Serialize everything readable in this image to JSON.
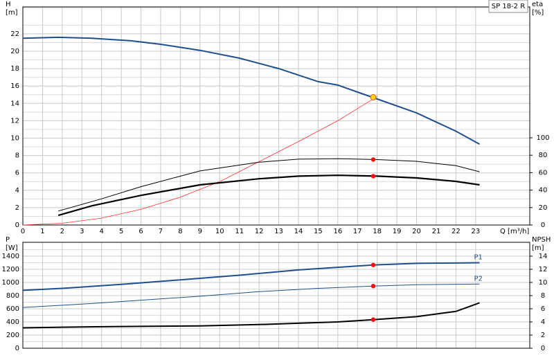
{
  "chart_data": [
    {
      "type": "line",
      "label_box": "SP 18-2 R",
      "ylabel": "H",
      "yunit": "[m]",
      "y2label": "eta",
      "y2unit": "[%]",
      "xlabel": "Q [m³/h]",
      "xlim": [
        0,
        25.75
      ],
      "xticks": [
        0,
        1,
        2,
        3,
        4,
        5,
        6,
        7,
        8,
        9,
        10,
        11,
        12,
        13,
        14,
        15,
        16,
        17,
        18,
        19,
        20,
        21,
        22,
        23
      ],
      "ylim": [
        0,
        25.1
      ],
      "yticks": [
        0,
        2,
        4,
        6,
        8,
        10,
        12,
        14,
        16,
        18,
        20,
        22
      ],
      "yminor": [
        1,
        3,
        5,
        7,
        9,
        11,
        13,
        15,
        17,
        19,
        21,
        23,
        25
      ],
      "y2lim": [
        0,
        250
      ],
      "y2ticks": [
        0,
        20,
        40,
        60,
        80,
        100
      ],
      "grid": true,
      "series": [
        {
          "color": "#1f4e8c",
          "width": 2,
          "style": "line",
          "x": [
            0,
            1.8,
            3.5,
            5.5,
            7,
            9,
            11,
            13,
            15,
            16,
            17,
            18,
            20,
            22,
            23.2
          ],
          "values": [
            21.5,
            21.6,
            21.5,
            21.2,
            20.8,
            20.1,
            19.2,
            18,
            16.5,
            16.1,
            15.3,
            14.5,
            12.9,
            10.8,
            9.3
          ]
        },
        {
          "color": "#ff3030",
          "width": 0.8,
          "style": "line",
          "x": [
            0,
            2,
            4,
            6,
            8,
            10,
            12,
            14,
            16,
            18
          ],
          "values": [
            0,
            0.2,
            0.8,
            1.8,
            3.2,
            5,
            7.3,
            9.6,
            12,
            14.8
          ]
        },
        {
          "color": "#000000",
          "width": 1,
          "style": "line",
          "axis": "y2",
          "x": [
            1.8,
            4,
            6,
            9,
            12,
            14,
            16,
            18,
            20,
            22,
            23.2
          ],
          "values": [
            16,
            30,
            44,
            62,
            72,
            75.5,
            76,
            75,
            73,
            68,
            61
          ]
        },
        {
          "color": "#000000",
          "width": 2.2,
          "style": "line",
          "axis": "y2",
          "x": [
            1.8,
            3.5,
            6,
            9,
            12,
            14,
            16,
            18,
            20,
            22,
            23.2
          ],
          "values": [
            11,
            22,
            34,
            46,
            53,
            56,
            57,
            56,
            54,
            50,
            46
          ]
        },
        {
          "color": "#ee1111",
          "style": "dot",
          "axis": "y2",
          "x": [
            17.8,
            17.8
          ],
          "values": [
            75,
            56
          ]
        },
        {
          "color": "#ffd21f",
          "style": "point",
          "x": [
            17.8
          ],
          "values": [
            14.7
          ]
        }
      ]
    },
    {
      "type": "line",
      "ylabel": "P",
      "yunit": "[W]",
      "y2label": "NPSH",
      "y2unit": "[m]",
      "xlim": [
        0,
        25.75
      ],
      "xticks": [
        0,
        1,
        2,
        3,
        4,
        5,
        6,
        7,
        8,
        9,
        10,
        11,
        12,
        13,
        14,
        15,
        16,
        17,
        18,
        19,
        20,
        21,
        22,
        23
      ],
      "ylim": [
        0,
        1610
      ],
      "yticks": [
        0,
        200,
        400,
        600,
        800,
        1000,
        1200,
        1400
      ],
      "yminor": [
        100,
        300,
        500,
        700,
        900,
        1100,
        1300,
        1500
      ],
      "y2lim": [
        0,
        16.1
      ],
      "y2ticks": [
        0,
        2,
        4,
        6,
        8,
        10,
        12,
        14
      ],
      "grid": true,
      "series": [
        {
          "name": "P1",
          "color": "#1f4e8c",
          "width": 2,
          "style": "line",
          "x": [
            0,
            2,
            5,
            8,
            11,
            14,
            16,
            17.8,
            20,
            23.2
          ],
          "values": [
            880,
            910,
            970,
            1040,
            1110,
            1190,
            1230,
            1265,
            1290,
            1300
          ]
        },
        {
          "name": "P2",
          "color": "#1f4e8c",
          "width": 1,
          "style": "line",
          "x": [
            0,
            3,
            6,
            9,
            12,
            15,
            17.8,
            20,
            23.2
          ],
          "values": [
            620,
            670,
            730,
            790,
            860,
            910,
            945,
            965,
            975
          ]
        },
        {
          "color": "#000000",
          "width": 2,
          "style": "line",
          "axis": "y2",
          "x": [
            0,
            2,
            5,
            9,
            12,
            14,
            16,
            17.8,
            20,
            22,
            23.2
          ],
          "values": [
            3.1,
            3.2,
            3.3,
            3.4,
            3.6,
            3.8,
            4.0,
            4.35,
            4.8,
            5.6,
            6.9
          ]
        },
        {
          "color": "#ee1111",
          "style": "dot",
          "x": [
            17.8,
            17.8
          ],
          "values": [
            1265,
            945
          ]
        },
        {
          "color": "#ee1111",
          "style": "dot",
          "axis": "y2",
          "x": [
            17.8
          ],
          "values": [
            4.35
          ]
        }
      ]
    }
  ]
}
